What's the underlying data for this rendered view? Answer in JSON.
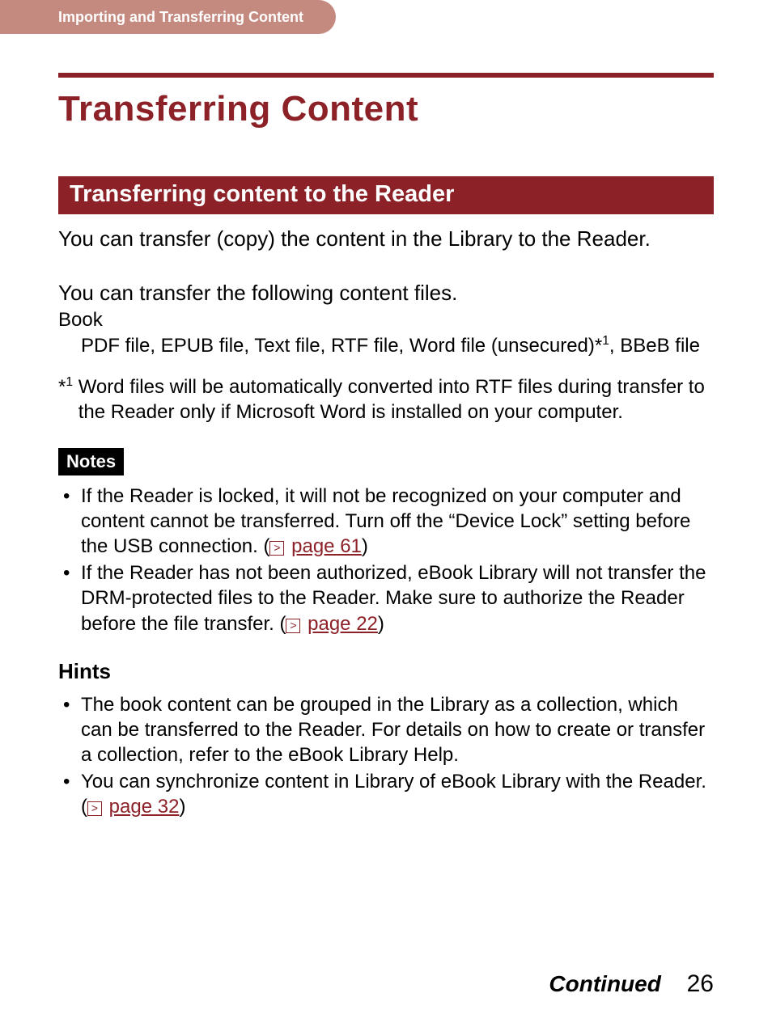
{
  "colors": {
    "brand": "#8c2228",
    "header_bg": "#c48a80",
    "text": "#000000",
    "badge_bg": "#000000",
    "badge_text": "#ffffff",
    "page_bg": "#ffffff"
  },
  "header": {
    "breadcrumb": "Importing and Transferring Content"
  },
  "title": "Transferring Content",
  "section_heading": "Transferring content to the Reader",
  "intro": "You can transfer (copy) the content in the Library to the Reader.",
  "files_intro": "You can transfer the following content files.",
  "book": {
    "label": "Book",
    "detail_pre": "PDF file, EPUB file, Text file, RTF file, Word file (unsecured)*",
    "detail_sup": "1",
    "detail_post": ", BBeB file"
  },
  "footnote": {
    "marker_pre": "*",
    "marker_sup": "1",
    "text": "Word files will be automatically converted into RTF files during transfer to the Reader only if Microsoft Word is installed on your computer."
  },
  "notes": {
    "label": "Notes",
    "items": [
      {
        "pre": "If the Reader is locked, it will not be recognized on your computer and content cannot be transferred. Turn off the “Device Lock” setting before the USB connection. (",
        "link": "page 61",
        "post": ")"
      },
      {
        "pre": "If the Reader has not been authorized, eBook Library will not transfer the DRM-protected files to the Reader. Make sure to authorize the Reader before the file transfer. (",
        "link": "page 22",
        "post": ")"
      }
    ]
  },
  "hints": {
    "label": "Hints",
    "items": [
      {
        "pre": "The book content can be grouped in the Library as a collection, which can be transferred to the Reader. For details on how to create or transfer a collection, refer to the eBook Library Help.",
        "link": "",
        "post": ""
      },
      {
        "pre": "You can synchronize content in Library of eBook Library with the Reader. (",
        "link": "page 32",
        "post": ")"
      }
    ]
  },
  "footer": {
    "continued": "Continued",
    "page": "26"
  }
}
